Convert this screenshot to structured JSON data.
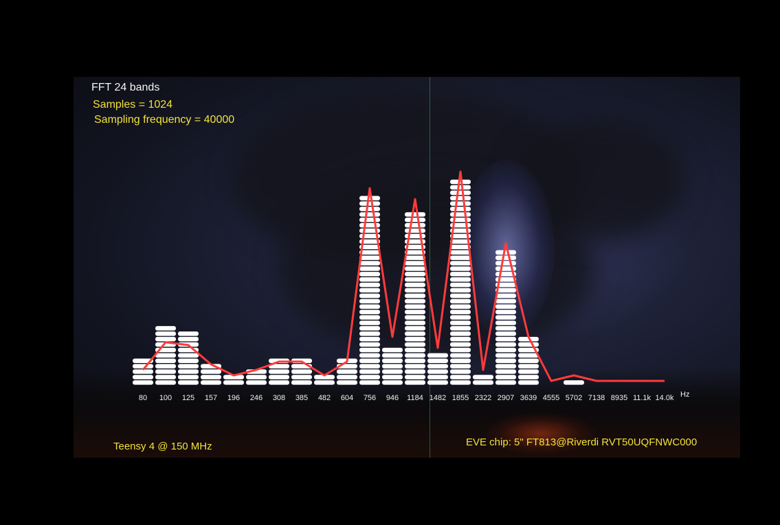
{
  "header": {
    "title": "FFT 24 bands",
    "samples": "Samples = 1024",
    "sampling_frequency": "Sampling frequency = 40000"
  },
  "footer": {
    "left": "Teensy 4 @ 150 MHz",
    "right": "EVE chip: 5\" FT813@Riverdi RVT50UQFNWC000"
  },
  "colors": {
    "bars": "#ffffff",
    "line": "#ff3b3b",
    "text_yellow": "#f2e23a"
  },
  "chart_data": {
    "type": "bar",
    "title": "FFT 24 bands",
    "categories": [
      "80",
      "100",
      "125",
      "157",
      "196",
      "246",
      "308",
      "385",
      "482",
      "604",
      "756",
      "946",
      "1184",
      "1482",
      "1855",
      "2322",
      "2907",
      "3639",
      "4555",
      "5702",
      "7138",
      "8935",
      "11.1k",
      "14.0k"
    ],
    "x_unit": "Hz",
    "values": [
      5,
      11,
      10,
      4,
      2,
      3,
      5,
      5,
      2,
      5,
      35,
      7,
      32,
      6,
      38,
      2,
      25,
      9,
      0,
      1,
      0,
      0,
      0,
      0
    ],
    "line_values": [
      2,
      7,
      6.5,
      3,
      1,
      2,
      3.5,
      3.5,
      1,
      3.5,
      35,
      8,
      33,
      6,
      38,
      2,
      25,
      8,
      0,
      1,
      0,
      0,
      0,
      0
    ],
    "ylim": [
      0,
      40
    ],
    "grid": false
  }
}
